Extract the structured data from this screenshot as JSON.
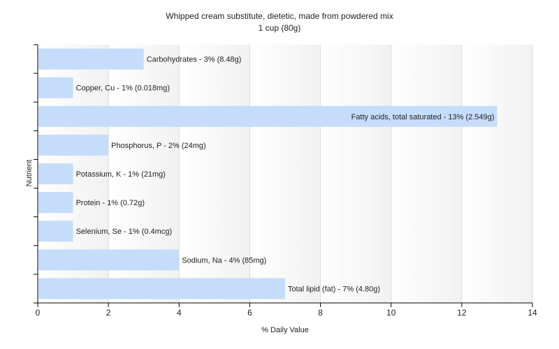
{
  "chart_data": {
    "type": "bar",
    "orientation": "horizontal",
    "title": "Whipped cream substitute, dietetic, made from powdered mix",
    "subtitle": "1 cup (80g)",
    "xlabel": "% Daily Value",
    "ylabel": "Nutrient",
    "xlim": [
      0,
      14
    ],
    "x_ticks": [
      0,
      2,
      4,
      6,
      8,
      10,
      12,
      14
    ],
    "grid": true,
    "legend": "none",
    "bar_color": "#c6dcfb",
    "categories": [
      "Carbohydrates",
      "Copper, Cu",
      "Fatty acids, total saturated",
      "Phosphorus, P",
      "Potassium, K",
      "Protein",
      "Selenium, Se",
      "Sodium, Na",
      "Total lipid (fat)"
    ],
    "values": [
      3,
      1,
      13,
      2,
      1,
      1,
      1,
      4,
      7
    ],
    "labels": [
      "Carbohydrates - 3% (8.48g)",
      "Copper, Cu - 1% (0.018mg)",
      "Fatty acids, total saturated - 13% (2.549g)",
      "Phosphorus, P - 2% (24mg)",
      "Potassium, K - 1% (21mg)",
      "Protein - 1% (0.72g)",
      "Selenium, Se - 1% (0.4mcg)",
      "Sodium, Na - 4% (85mg)",
      "Total lipid (fat) - 7% (4.80g)"
    ]
  }
}
